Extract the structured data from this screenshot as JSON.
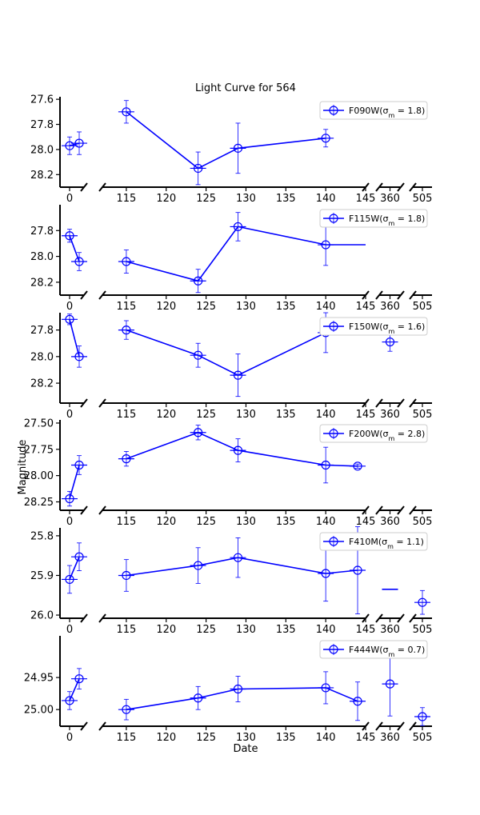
{
  "chart_data": {
    "type": "line",
    "title": "Light Curve for 564",
    "xlabel": "Date",
    "ylabel": "Magnitude",
    "y_inverted": true,
    "x_segments": [
      {
        "range": [
          -2,
          3
        ],
        "ticks": [
          0
        ]
      },
      {
        "range": [
          112,
          145
        ],
        "ticks": [
          115,
          120,
          125,
          130,
          135,
          140,
          145
        ]
      },
      {
        "range": [
          357,
          363
        ],
        "ticks": [
          360
        ]
      },
      {
        "range": [
          503,
          507
        ],
        "ticks": [
          505
        ]
      }
    ],
    "panels": [
      {
        "name": "F090W",
        "legend": "F090W(σ_m = 1.8)",
        "legend_filter": "F090W",
        "legend_sigma": "1.8",
        "ylim": [
          28.3,
          27.58
        ],
        "yticks": [
          27.6,
          27.8,
          28.0,
          28.2
        ],
        "ytick_labels": [
          "27.6",
          "27.8",
          "28.0",
          "28.2"
        ],
        "points": [
          {
            "x": 0,
            "y": 27.97,
            "err": 0.07
          },
          {
            "x": 2,
            "y": 27.95,
            "err": 0.09
          },
          {
            "x": 115,
            "y": 27.7,
            "err": 0.09
          },
          {
            "x": 124,
            "y": 28.15,
            "err": 0.13
          },
          {
            "x": 129,
            "y": 27.99,
            "err": 0.2
          },
          {
            "x": 140,
            "y": 27.91,
            "err": 0.07
          }
        ],
        "segments": [
          [
            0,
            1
          ],
          [
            2,
            3,
            4,
            5
          ]
        ]
      },
      {
        "name": "F115W",
        "legend": "F115W(σ_m = 1.8)",
        "legend_filter": "F115W",
        "legend_sigma": "1.8",
        "ylim": [
          28.3,
          27.6
        ],
        "yticks": [
          27.8,
          28.0,
          28.2
        ],
        "ytick_labels": [
          "27.8",
          "28.0",
          "28.2"
        ],
        "points": [
          {
            "x": 0,
            "y": 27.84,
            "err": 0.05
          },
          {
            "x": 2,
            "y": 28.04,
            "err": 0.07
          },
          {
            "x": 115,
            "y": 28.04,
            "err": 0.09
          },
          {
            "x": 124,
            "y": 28.19,
            "err": 0.09
          },
          {
            "x": 129,
            "y": 27.77,
            "err": 0.11
          },
          {
            "x": 140,
            "y": 27.91,
            "err": 0.16
          }
        ],
        "segments": [
          [
            0,
            1
          ],
          [
            2,
            3,
            4,
            5,
            145
          ]
        ]
      },
      {
        "name": "F150W",
        "legend": "F150W(σ_m = 1.6)",
        "legend_filter": "F150W",
        "legend_sigma": "1.6",
        "ylim": [
          28.35,
          27.67
        ],
        "yticks": [
          27.8,
          28.0,
          28.2
        ],
        "ytick_labels": [
          "27.8",
          "28.0",
          "28.2"
        ],
        "points": [
          {
            "x": 0,
            "y": 27.72,
            "err": 0.04
          },
          {
            "x": 2,
            "y": 28.0,
            "err": 0.08
          },
          {
            "x": 115,
            "y": 27.8,
            "err": 0.07
          },
          {
            "x": 124,
            "y": 27.99,
            "err": 0.09
          },
          {
            "x": 129,
            "y": 28.14,
            "err": 0.16
          },
          {
            "x": 140,
            "y": 27.82,
            "err": 0.15
          },
          {
            "x": 360,
            "y": 27.89,
            "err": 0.07
          }
        ],
        "segments": [
          [
            0,
            1
          ],
          [
            2,
            3,
            4,
            5,
            145
          ]
        ]
      },
      {
        "name": "F200W",
        "legend": "F200W(σ_m = 2.8)",
        "legend_filter": "F200W",
        "legend_sigma": "2.8",
        "ylim": [
          28.33,
          27.47
        ],
        "yticks": [
          27.5,
          27.75,
          28.0,
          28.25
        ],
        "ytick_labels": [
          "27.50",
          "27.75",
          "28.00",
          "28.25"
        ],
        "points": [
          {
            "x": 0,
            "y": 28.22,
            "err": 0.07
          },
          {
            "x": 2,
            "y": 27.9,
            "err": 0.09
          },
          {
            "x": 115,
            "y": 27.84,
            "err": 0.07
          },
          {
            "x": 124,
            "y": 27.59,
            "err": 0.07
          },
          {
            "x": 129,
            "y": 27.76,
            "err": 0.11
          },
          {
            "x": 140,
            "y": 27.9,
            "err": 0.17
          },
          {
            "x": 144,
            "y": 27.91,
            "err": 0.02
          }
        ],
        "segments": [
          [
            0,
            1
          ],
          [
            2,
            3,
            4,
            5,
            6
          ]
        ]
      },
      {
        "name": "F410M",
        "legend": "F410M(σ_m = 1.1)",
        "legend_filter": "F410M",
        "legend_sigma": "1.1",
        "ylim": [
          26.008,
          25.78
        ],
        "yticks": [
          25.8,
          25.9,
          26.0
        ],
        "ytick_labels": [
          "25.8",
          "25.9",
          "26.0"
        ],
        "points": [
          {
            "x": 0,
            "y": 25.91,
            "err": 0.035
          },
          {
            "x": 2,
            "y": 25.853,
            "err": 0.035
          },
          {
            "x": 115,
            "y": 25.9,
            "err": 0.04
          },
          {
            "x": 124,
            "y": 25.875,
            "err": 0.045
          },
          {
            "x": 129,
            "y": 25.855,
            "err": 0.05
          },
          {
            "x": 140,
            "y": 25.895,
            "err": 0.07
          },
          {
            "x": 144,
            "y": 25.887,
            "err": 0.11
          },
          {
            "x": 505,
            "y": 25.968,
            "err": 0.03
          }
        ],
        "segments": [
          [
            0,
            1
          ],
          [
            2,
            3,
            4,
            5,
            6
          ]
        ],
        "extra_ticks": [
          {
            "x": 360,
            "y": 25.935
          }
        ]
      },
      {
        "name": "F444W",
        "legend": "F444W(σ_m = 0.7)",
        "legend_filter": "F444W",
        "legend_sigma": "0.7",
        "ylim": [
          25.026,
          24.885
        ],
        "yticks": [
          24.95,
          25.0
        ],
        "ytick_labels": [
          "24.95",
          "25.00"
        ],
        "points": [
          {
            "x": 0,
            "y": 24.986,
            "err": 0.014
          },
          {
            "x": 2,
            "y": 24.952,
            "err": 0.016
          },
          {
            "x": 115,
            "y": 25.0,
            "err": 0.016
          },
          {
            "x": 124,
            "y": 24.982,
            "err": 0.018
          },
          {
            "x": 129,
            "y": 24.968,
            "err": 0.02
          },
          {
            "x": 140,
            "y": 24.966,
            "err": 0.025
          },
          {
            "x": 144,
            "y": 24.987,
            "err": 0.03
          },
          {
            "x": 360,
            "y": 24.96,
            "err": 0.05
          },
          {
            "x": 505,
            "y": 25.011,
            "err": 0.014
          }
        ],
        "segments": [
          [
            0,
            1
          ],
          [
            2,
            3,
            4,
            5,
            6
          ]
        ]
      }
    ]
  },
  "colors": {
    "series": "#0000ff",
    "axes": "#000000",
    "legend_border": "#cccccc"
  }
}
